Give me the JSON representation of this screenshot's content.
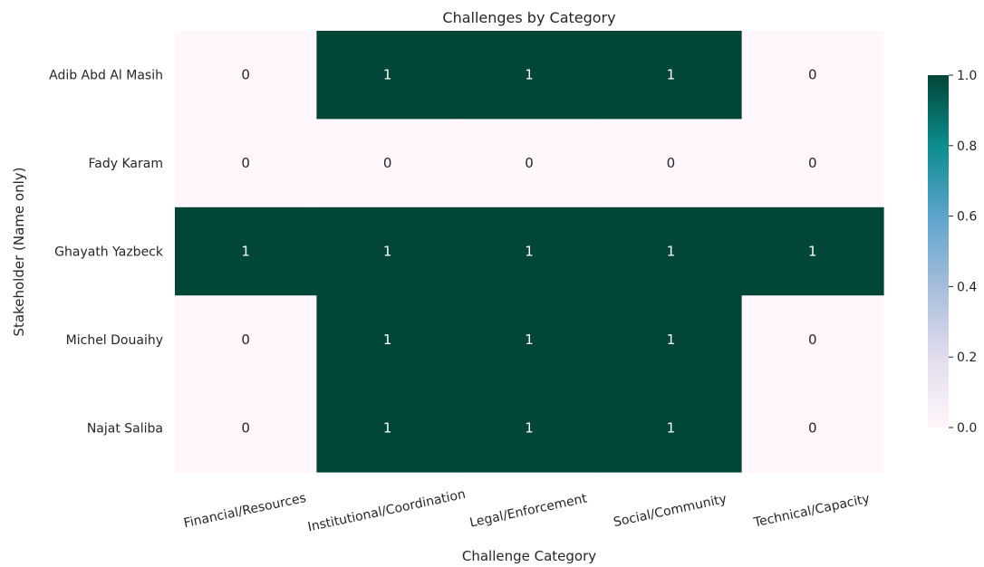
{
  "chart_data": {
    "type": "heatmap",
    "title": "Challenges by Category",
    "xlabel": "Challenge Category",
    "ylabel": "Stakeholder (Name only)",
    "x_categories": [
      "Financial/Resources",
      "Institutional/Coordination",
      "Legal/Enforcement",
      "Social/Community",
      "Technical/Capacity"
    ],
    "y_categories": [
      "Adib Abd Al Masih",
      "Fady Karam",
      "Ghayath Yazbeck",
      "Michel Douaihy",
      "Najat Saliba"
    ],
    "values": [
      [
        0,
        1,
        1,
        1,
        0
      ],
      [
        0,
        0,
        0,
        0,
        0
      ],
      [
        1,
        1,
        1,
        1,
        1
      ],
      [
        0,
        1,
        1,
        1,
        0
      ],
      [
        0,
        1,
        1,
        1,
        0
      ]
    ],
    "annotations": true,
    "vmin": 0.0,
    "vmax": 1.0,
    "colormap": "PuBuGn",
    "colorbar_ticks": [
      "0.0",
      "0.2",
      "0.4",
      "0.6",
      "0.8",
      "1.0"
    ],
    "x_tick_rotation": "rotated",
    "grid": false,
    "colors": {
      "low": "#fff7fb",
      "high": "#014636",
      "low_text": "#262626",
      "high_text": "#ffffff"
    }
  }
}
